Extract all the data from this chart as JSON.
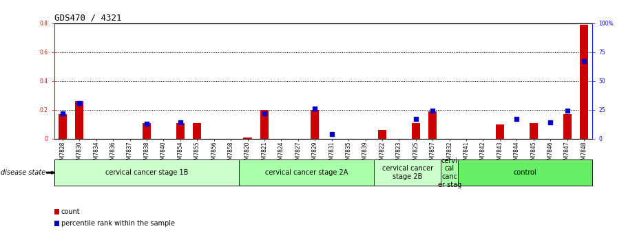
{
  "title": "GDS470 / 4321",
  "samples": [
    "GSM7828",
    "GSM7830",
    "GSM7834",
    "GSM7836",
    "GSM7837",
    "GSM7838",
    "GSM7840",
    "GSM7854",
    "GSM7855",
    "GSM7856",
    "GSM7858",
    "GSM7820",
    "GSM7821",
    "GSM7824",
    "GSM7827",
    "GSM7829",
    "GSM7831",
    "GSM7835",
    "GSM7839",
    "GSM7822",
    "GSM7823",
    "GSM7825",
    "GSM7857",
    "GSM7832",
    "GSM7841",
    "GSM7842",
    "GSM7843",
    "GSM7844",
    "GSM7845",
    "GSM7846",
    "GSM7847",
    "GSM7848"
  ],
  "count_values": [
    0.17,
    0.26,
    0.0,
    0.0,
    0.0,
    0.11,
    0.0,
    0.11,
    0.11,
    0.0,
    0.0,
    0.01,
    0.2,
    0.0,
    0.0,
    0.2,
    0.0,
    0.0,
    0.0,
    0.06,
    0.0,
    0.11,
    0.19,
    0.0,
    0.0,
    0.0,
    0.1,
    0.0,
    0.11,
    0.0,
    0.17,
    0.79
  ],
  "percentile_values": [
    22,
    31,
    0,
    0,
    0,
    13,
    0,
    14,
    0,
    0,
    0,
    0,
    22,
    0,
    0,
    26,
    4,
    0,
    0,
    0,
    0,
    17,
    24,
    0,
    0,
    0,
    0,
    17,
    0,
    14,
    24,
    67
  ],
  "groups": [
    {
      "label": "cervical cancer stage 1B",
      "start": 0,
      "end": 11,
      "color": "#ccffcc"
    },
    {
      "label": "cervical cancer stage 2A",
      "start": 11,
      "end": 19,
      "color": "#aaffaa"
    },
    {
      "label": "cervical cancer\nstage 2B",
      "start": 19,
      "end": 23,
      "color": "#ccffcc"
    },
    {
      "label": "cervi\ncal\ncanc\ner stag",
      "start": 23,
      "end": 24,
      "color": "#aaffaa"
    },
    {
      "label": "control",
      "start": 24,
      "end": 32,
      "color": "#66ee66"
    }
  ],
  "bar_color": "#cc0000",
  "dot_color": "#0000cc",
  "left_ylim": [
    0,
    0.8
  ],
  "right_ylim": [
    0,
    100
  ],
  "left_yticks": [
    0,
    0.2,
    0.4,
    0.6,
    0.8
  ],
  "right_yticks": [
    0,
    25,
    50,
    75,
    100
  ],
  "left_ytick_labels": [
    "0",
    "0.2",
    "0.4",
    "0.6",
    "0.8"
  ],
  "right_ytick_labels": [
    "0",
    "25",
    "50",
    "75",
    "100%"
  ],
  "grid_values": [
    0.2,
    0.4,
    0.6
  ],
  "disease_state_label": "disease state",
  "legend_count_label": "count",
  "legend_percentile_label": "percentile rank within the sample",
  "background_color": "#ffffff",
  "title_fontsize": 9,
  "tick_fontsize": 5.5,
  "label_fontsize": 7,
  "group_label_fontsize": 7,
  "bar_width": 0.5,
  "dot_size": 18
}
